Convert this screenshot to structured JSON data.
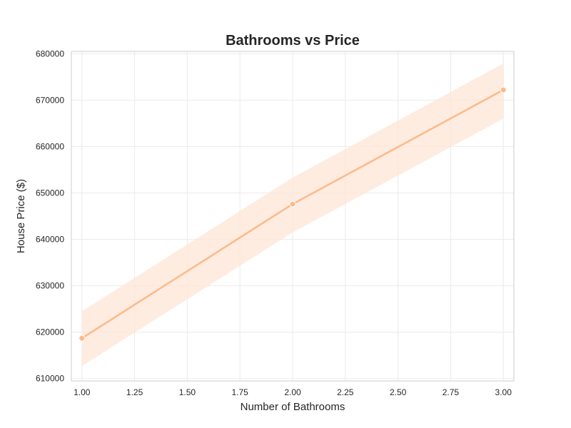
{
  "chart_data": {
    "type": "line",
    "title": "Bathrooms vs Price",
    "xlabel": "Number of Bathrooms",
    "ylabel": "House Price ($)",
    "xlim": [
      0.95,
      3.05
    ],
    "ylim": [
      609500,
      680500
    ],
    "x_ticks": [
      "1.00",
      "1.25",
      "1.50",
      "1.75",
      "2.00",
      "2.25",
      "2.50",
      "2.75",
      "3.00"
    ],
    "x_tick_values": [
      1.0,
      1.25,
      1.5,
      1.75,
      2.0,
      2.25,
      2.5,
      2.75,
      3.0
    ],
    "y_ticks": [
      "610000",
      "620000",
      "630000",
      "640000",
      "650000",
      "660000",
      "670000",
      "680000"
    ],
    "y_tick_values": [
      610000,
      620000,
      630000,
      640000,
      650000,
      660000,
      670000,
      680000
    ],
    "grid": true,
    "series": [
      {
        "x": [
          1,
          2,
          3
        ],
        "values": [
          618700,
          647600,
          672200
        ],
        "ci_lower": [
          612700,
          641500,
          666000
        ],
        "ci_upper": [
          624500,
          653300,
          677900
        ]
      }
    ],
    "colors": {
      "line": "#fdb98a",
      "band": "#fde6d6",
      "marker": "#fdb98a"
    }
  }
}
